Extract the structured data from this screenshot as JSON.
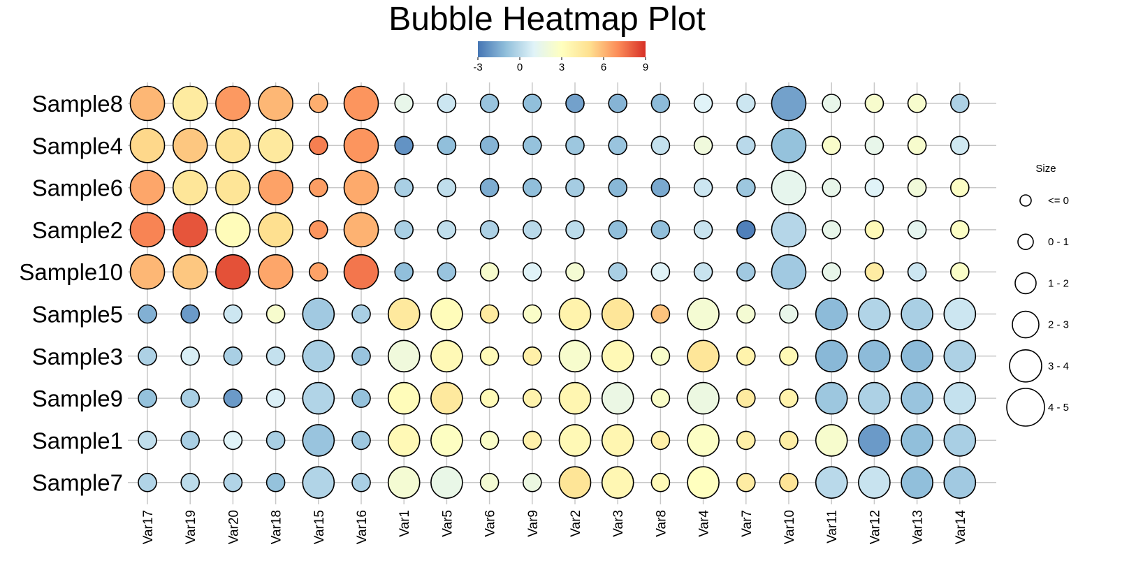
{
  "chart_data": {
    "type": "bubble-heatmap",
    "title": "Bubble Heatmap Plot",
    "x_categories": [
      "Var17",
      "Var19",
      "Var20",
      "Var18",
      "Var15",
      "Var16",
      "Var1",
      "Var5",
      "Var6",
      "Var9",
      "Var2",
      "Var3",
      "Var8",
      "Var4",
      "Var7",
      "Var10",
      "Var11",
      "Var12",
      "Var13",
      "Var14"
    ],
    "y_categories": [
      "Sample8",
      "Sample4",
      "Sample6",
      "Sample2",
      "Sample10",
      "Sample5",
      "Sample3",
      "Sample9",
      "Sample1",
      "Sample7"
    ],
    "colorbar": {
      "min": -3,
      "max": 9,
      "ticks": [
        "-3",
        "0",
        "3",
        "6",
        "9"
      ],
      "colors": [
        "#4575b4",
        "#91bfdb",
        "#e0f3f8",
        "#ffffbf",
        "#fee090",
        "#fc8d59",
        "#d73027"
      ]
    },
    "color_values": [
      [
        6.0,
        4.3,
        6.7,
        6.0,
        6.2,
        6.8,
        1.5,
        0.5,
        -0.8,
        -1.0,
        -1.8,
        -1.3,
        -1.1,
        1.0,
        0.5,
        -1.8,
        1.5,
        2.5,
        2.5,
        -0.3
      ],
      [
        5.2,
        5.6,
        4.8,
        4.4,
        7.3,
        6.8,
        -2.2,
        -1.0,
        -1.3,
        -0.9,
        -0.7,
        -0.8,
        0.3,
        2.0,
        0.0,
        -0.9,
        2.6,
        1.5,
        2.5,
        0.6
      ],
      [
        6.4,
        4.6,
        4.7,
        6.5,
        6.6,
        6.3,
        -0.4,
        0.2,
        -1.5,
        -1.0,
        -0.5,
        -1.2,
        -1.6,
        0.5,
        -0.7,
        1.4,
        1.5,
        1.0,
        2.1,
        2.8
      ],
      [
        7.2,
        8.2,
        3.2,
        5.0,
        6.8,
        6.1,
        -0.4,
        0.2,
        -0.3,
        0.0,
        0.1,
        -1.0,
        -1.0,
        0.4,
        -2.7,
        -0.1,
        1.5,
        3.3,
        1.3,
        2.8
      ],
      [
        6.0,
        5.6,
        8.3,
        6.4,
        6.5,
        7.5,
        -1.0,
        -0.8,
        2.5,
        1.0,
        2.3,
        -0.4,
        1.0,
        0.4,
        -0.6,
        -0.6,
        1.5,
        4.2,
        0.5,
        2.7
      ],
      [
        -1.4,
        -2.0,
        0.5,
        2.5,
        -0.6,
        -0.4,
        4.4,
        3.2,
        4.3,
        2.7,
        3.8,
        4.6,
        5.7,
        2.3,
        2.3,
        1.5,
        -1.1,
        -0.2,
        -0.4,
        0.5
      ],
      [
        -0.3,
        0.8,
        -0.4,
        0.3,
        -0.4,
        -0.8,
        2.0,
        3.4,
        3.3,
        4.0,
        2.5,
        3.4,
        2.6,
        4.6,
        3.8,
        3.4,
        -1.2,
        -1.1,
        -1.1,
        -0.3
      ],
      [
        -0.9,
        -0.4,
        -2.0,
        0.9,
        -0.2,
        -0.9,
        3.2,
        4.4,
        3.3,
        3.8,
        3.6,
        1.7,
        2.7,
        1.8,
        4.3,
        3.8,
        -0.7,
        -0.3,
        -0.8,
        0.3
      ],
      [
        0.2,
        -0.4,
        1.0,
        -0.4,
        -0.8,
        -0.7,
        3.4,
        2.9,
        2.7,
        3.9,
        3.4,
        3.6,
        4.0,
        2.8,
        4.0,
        4.1,
        2.5,
        -2.0,
        -1.0,
        -0.4
      ],
      [
        -0.2,
        0.1,
        -0.2,
        -0.9,
        -0.2,
        -0.4,
        2.3,
        1.6,
        2.3,
        1.8,
        4.7,
        3.5,
        3.3,
        3.0,
        4.2,
        4.7,
        0.0,
        0.4,
        -1.0,
        -0.6
      ]
    ],
    "size_bins": [
      [
        4,
        4,
        4,
        4,
        1,
        4,
        1,
        1,
        1,
        1,
        1,
        1,
        1,
        1,
        1,
        4,
        1,
        1,
        1,
        1
      ],
      [
        4,
        4,
        4,
        4,
        1,
        4,
        1,
        1,
        1,
        1,
        1,
        1,
        1,
        1,
        1,
        4,
        1,
        1,
        1,
        1
      ],
      [
        4,
        4,
        4,
        4,
        1,
        4,
        1,
        1,
        1,
        1,
        1,
        1,
        1,
        1,
        1,
        4,
        1,
        1,
        1,
        1
      ],
      [
        4,
        4,
        4,
        4,
        1,
        4,
        1,
        1,
        1,
        1,
        1,
        1,
        1,
        1,
        1,
        4,
        1,
        1,
        1,
        1
      ],
      [
        4,
        4,
        4,
        4,
        1,
        4,
        1,
        1,
        1,
        1,
        1,
        1,
        1,
        1,
        1,
        4,
        1,
        1,
        1,
        1
      ],
      [
        1,
        1,
        1,
        1,
        3,
        1,
        3,
        3,
        1,
        1,
        3,
        3,
        1,
        3,
        1,
        1,
        3,
        3,
        3,
        3
      ],
      [
        1,
        1,
        1,
        1,
        3,
        1,
        3,
        3,
        1,
        1,
        3,
        3,
        1,
        3,
        1,
        1,
        3,
        3,
        3,
        3
      ],
      [
        1,
        1,
        1,
        1,
        3,
        1,
        3,
        3,
        1,
        1,
        3,
        3,
        1,
        3,
        1,
        1,
        3,
        3,
        3,
        3
      ],
      [
        1,
        1,
        1,
        1,
        3,
        1,
        3,
        3,
        1,
        1,
        3,
        3,
        1,
        3,
        1,
        1,
        3,
        3,
        3,
        3
      ],
      [
        1,
        1,
        1,
        1,
        3,
        1,
        3,
        3,
        1,
        1,
        3,
        3,
        1,
        3,
        1,
        1,
        3,
        3,
        3,
        3
      ]
    ],
    "size_legend": {
      "title": "Size",
      "labels": [
        "<= 0",
        "0 - 1",
        "1 - 2",
        "2 - 3",
        "3 - 4",
        "4 - 5"
      ]
    },
    "grid": true
  }
}
